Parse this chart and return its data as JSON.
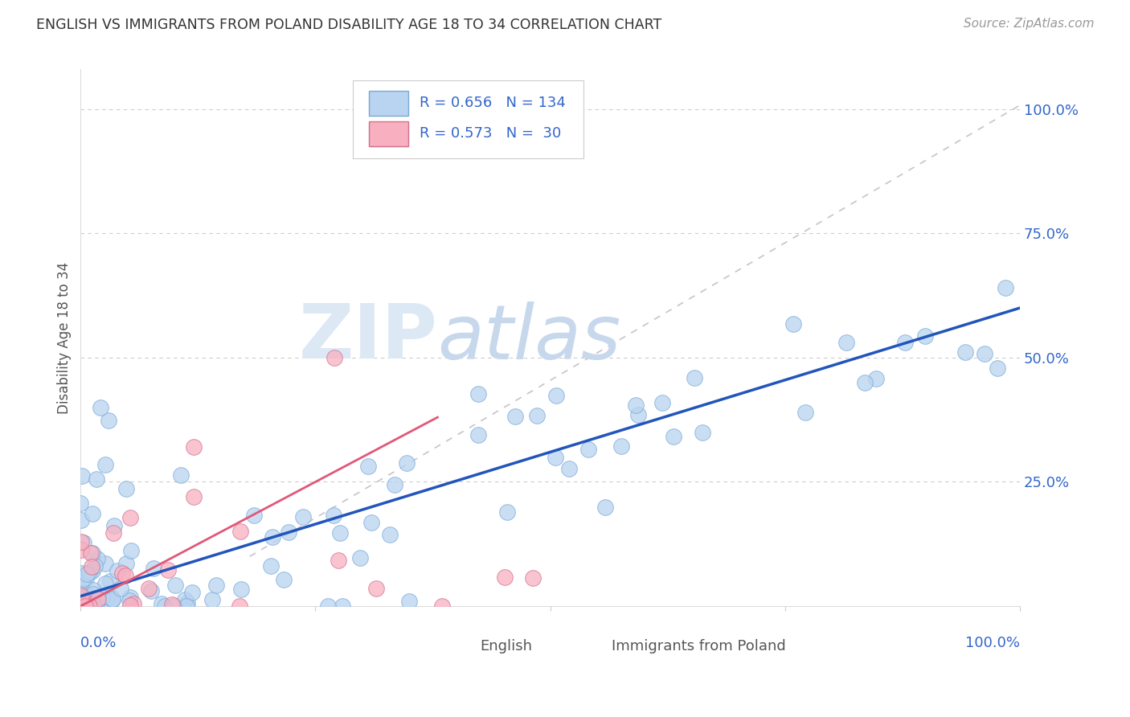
{
  "title": "ENGLISH VS IMMIGRANTS FROM POLAND DISABILITY AGE 18 TO 34 CORRELATION CHART",
  "source": "Source: ZipAtlas.com",
  "ylabel": "Disability Age 18 to 34",
  "watermark_text": "ZIP",
  "watermark_text2": "atlas",
  "legend_english_R": "R = 0.656",
  "legend_english_N": "N = 134",
  "legend_poland_R": "R = 0.573",
  "legend_poland_N": "N =  30",
  "english_face_color": "#b8d4f0",
  "english_edge_color": "#7aa8d8",
  "english_line_color": "#2255bb",
  "poland_face_color": "#f8b0c0",
  "poland_edge_color": "#d07090",
  "poland_line_color": "#e05878",
  "text_color": "#3366cc",
  "title_color": "#333333",
  "background_color": "#ffffff",
  "grid_color": "#cccccc",
  "right_tick_color": "#3366cc",
  "dashed_line_color": "#c0b0c0"
}
